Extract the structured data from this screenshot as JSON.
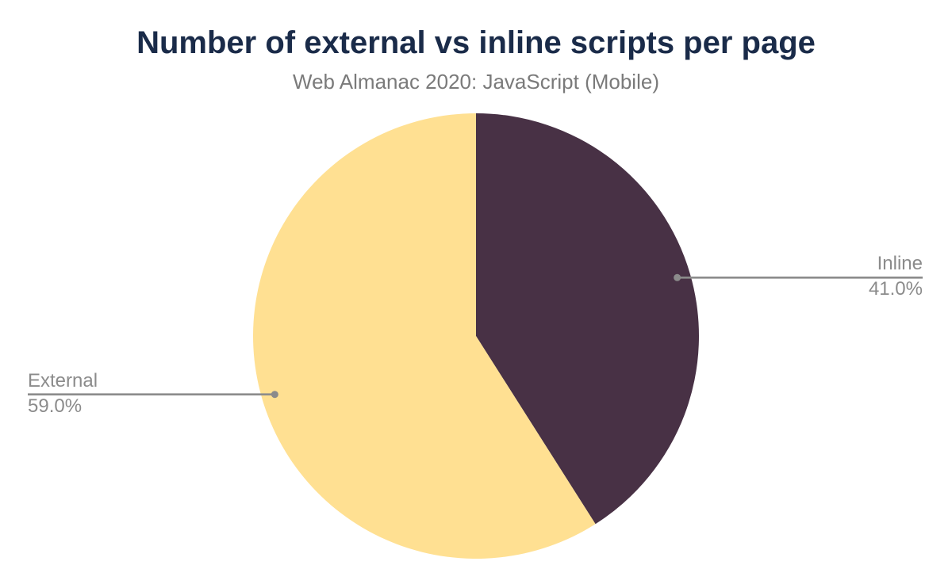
{
  "page": {
    "title": "Number of external vs inline scripts per page",
    "subtitle": "Web Almanac 2020: JavaScript (Mobile)"
  },
  "chart_data": {
    "type": "pie",
    "title": "Number of external vs inline scripts per page",
    "subtitle": "Web Almanac 2020: JavaScript (Mobile)",
    "unit": "percent",
    "start_angle_deg": 0,
    "direction": "clockwise",
    "legend_position": "none",
    "slices": [
      {
        "label": "Inline",
        "value": 41.0,
        "percent_label": "41.0%",
        "color": "#483145"
      },
      {
        "label": "External",
        "value": 59.0,
        "percent_label": "59.0%",
        "color": "#ffe092"
      }
    ]
  },
  "colors": {
    "background": "#ffffff",
    "title_text": "#1a2b49",
    "subtitle_text": "#7a7a7a",
    "callout_text": "#8b8b8b",
    "callout_line": "#8b8b8b",
    "slice_inline": "#483145",
    "slice_external": "#ffe092"
  }
}
